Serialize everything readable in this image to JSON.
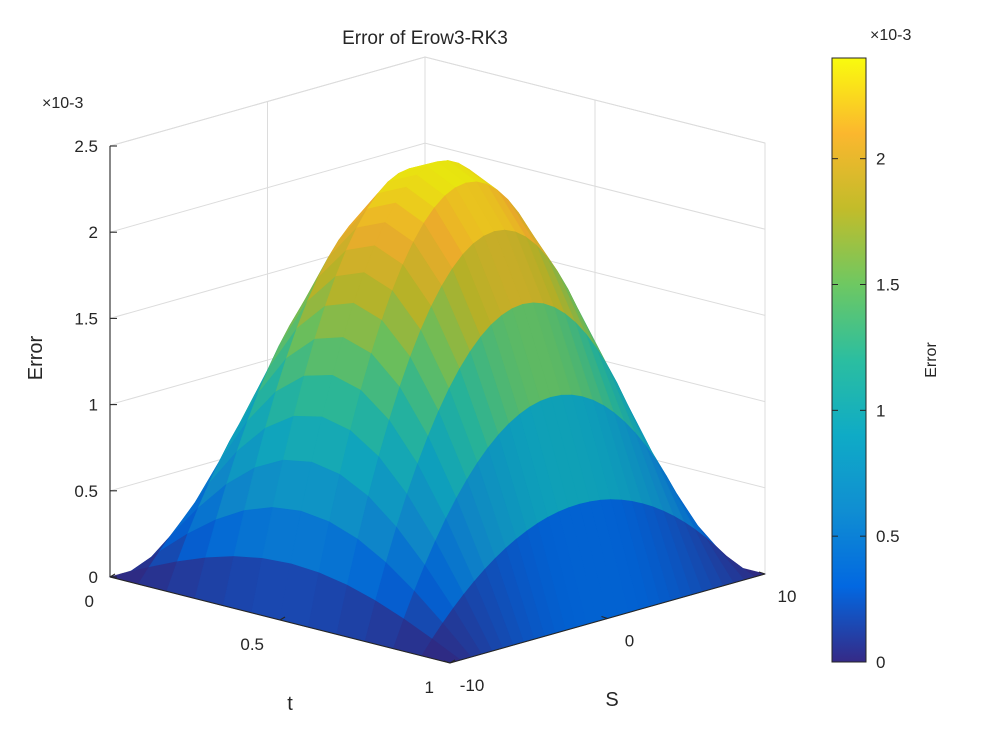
{
  "chart_data": {
    "type": "surface3d",
    "title": "Error of Erow3-RK3",
    "xlabel": "t",
    "ylabel": "S",
    "zlabel": "Error",
    "x_ticks": [
      "0",
      "0.5",
      "1"
    ],
    "y_ticks": [
      "-10",
      "0",
      "10"
    ],
    "z_ticks": [
      "0",
      "0.5",
      "1",
      "1.5",
      "2",
      "2.5"
    ],
    "z_exponent": "×10-3",
    "xlim": [
      0,
      1
    ],
    "ylim": [
      -10,
      10
    ],
    "zlim": [
      0,
      0.0025
    ],
    "surface_model": "z = zmax * sin(pi*t) * (1 - (S/10)^2)",
    "surface_peak": 0.0024,
    "peak_at": {
      "t": 0.5,
      "S": 0
    },
    "colormap": "parula",
    "grid": true,
    "colorbar": {
      "label": "Error",
      "ticks": [
        "0",
        "0.5",
        "1",
        "1.5",
        "2"
      ],
      "exponent": "×10-3",
      "range": [
        0,
        0.0024
      ]
    }
  }
}
